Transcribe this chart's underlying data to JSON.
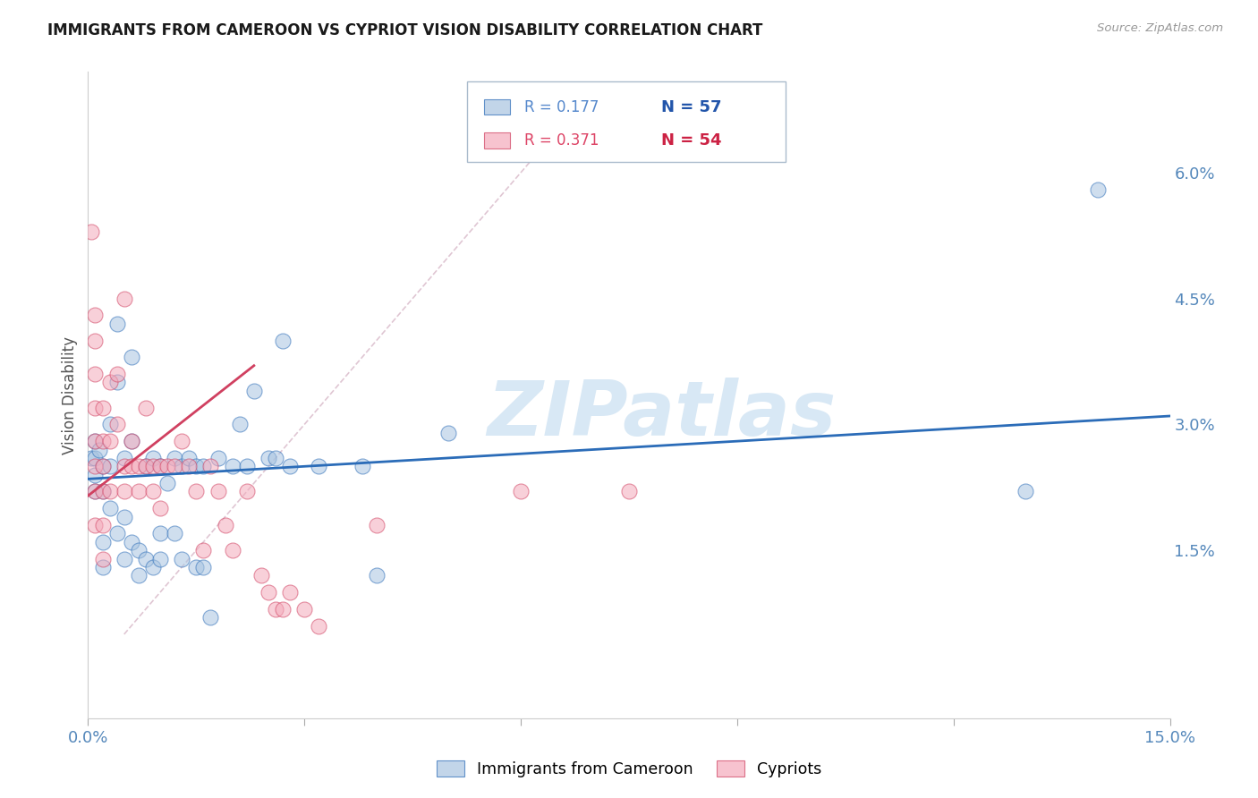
{
  "title": "IMMIGRANTS FROM CAMEROON VS CYPRIOT VISION DISABILITY CORRELATION CHART",
  "source": "Source: ZipAtlas.com",
  "ylabel": "Vision Disability",
  "xlim": [
    0.0,
    0.15
  ],
  "ylim": [
    -0.005,
    0.072
  ],
  "xticks": [
    0.0,
    0.03,
    0.06,
    0.09,
    0.12,
    0.15
  ],
  "xticklabels": [
    "0.0%",
    "",
    "",
    "",
    "",
    "15.0%"
  ],
  "yticks_right": [
    0.015,
    0.03,
    0.045,
    0.06
  ],
  "yticklabels_right": [
    "1.5%",
    "3.0%",
    "4.5%",
    "6.0%"
  ],
  "legend_r1": "0.177",
  "legend_n1": "57",
  "legend_r2": "0.371",
  "legend_n2": "54",
  "color_blue": "#A8C4E0",
  "color_pink": "#F4AABB",
  "color_blue_line": "#2B6CB8",
  "color_pink_line": "#D04060",
  "color_diag_line": "#D8B8C8",
  "watermark_text": "ZIPatlas",
  "watermark_color": "#D8E8F5",
  "blue_points_x": [
    0.0005,
    0.001,
    0.001,
    0.001,
    0.001,
    0.0015,
    0.002,
    0.002,
    0.002,
    0.002,
    0.003,
    0.003,
    0.003,
    0.004,
    0.004,
    0.004,
    0.005,
    0.005,
    0.005,
    0.006,
    0.006,
    0.006,
    0.007,
    0.007,
    0.008,
    0.008,
    0.009,
    0.009,
    0.01,
    0.01,
    0.01,
    0.011,
    0.012,
    0.012,
    0.013,
    0.013,
    0.014,
    0.015,
    0.015,
    0.016,
    0.016,
    0.017,
    0.018,
    0.02,
    0.021,
    0.022,
    0.023,
    0.025,
    0.026,
    0.027,
    0.028,
    0.032,
    0.038,
    0.04,
    0.05,
    0.13,
    0.14
  ],
  "blue_points_y": [
    0.026,
    0.028,
    0.026,
    0.024,
    0.022,
    0.027,
    0.025,
    0.022,
    0.016,
    0.013,
    0.03,
    0.025,
    0.02,
    0.042,
    0.035,
    0.017,
    0.026,
    0.019,
    0.014,
    0.038,
    0.028,
    0.016,
    0.015,
    0.012,
    0.025,
    0.014,
    0.026,
    0.013,
    0.025,
    0.017,
    0.014,
    0.023,
    0.026,
    0.017,
    0.025,
    0.014,
    0.026,
    0.025,
    0.013,
    0.025,
    0.013,
    0.007,
    0.026,
    0.025,
    0.03,
    0.025,
    0.034,
    0.026,
    0.026,
    0.04,
    0.025,
    0.025,
    0.025,
    0.012,
    0.029,
    0.022,
    0.058
  ],
  "pink_points_x": [
    0.0005,
    0.001,
    0.001,
    0.001,
    0.001,
    0.001,
    0.001,
    0.001,
    0.001,
    0.002,
    0.002,
    0.002,
    0.002,
    0.002,
    0.002,
    0.003,
    0.003,
    0.003,
    0.004,
    0.004,
    0.005,
    0.005,
    0.005,
    0.006,
    0.006,
    0.007,
    0.007,
    0.008,
    0.008,
    0.009,
    0.009,
    0.01,
    0.01,
    0.011,
    0.012,
    0.013,
    0.014,
    0.015,
    0.016,
    0.017,
    0.018,
    0.019,
    0.02,
    0.022,
    0.024,
    0.025,
    0.026,
    0.027,
    0.028,
    0.03,
    0.032,
    0.04,
    0.06,
    0.075
  ],
  "pink_points_y": [
    0.053,
    0.043,
    0.04,
    0.036,
    0.032,
    0.028,
    0.025,
    0.022,
    0.018,
    0.032,
    0.028,
    0.025,
    0.022,
    0.018,
    0.014,
    0.035,
    0.028,
    0.022,
    0.03,
    0.036,
    0.025,
    0.045,
    0.022,
    0.028,
    0.025,
    0.025,
    0.022,
    0.025,
    0.032,
    0.025,
    0.022,
    0.025,
    0.02,
    0.025,
    0.025,
    0.028,
    0.025,
    0.022,
    0.015,
    0.025,
    0.022,
    0.018,
    0.015,
    0.022,
    0.012,
    0.01,
    0.008,
    0.008,
    0.01,
    0.008,
    0.006,
    0.018,
    0.022,
    0.022
  ],
  "blue_line_x": [
    0.0,
    0.15
  ],
  "blue_line_y": [
    0.0235,
    0.031
  ],
  "pink_line_x": [
    0.0,
    0.023
  ],
  "pink_line_y": [
    0.0215,
    0.037
  ],
  "diag_line_x": [
    0.005,
    0.065
  ],
  "diag_line_y": [
    0.005,
    0.065
  ],
  "grid_color": "#DDDDEE",
  "title_fontsize": 12,
  "tick_color": "#5588BB"
}
